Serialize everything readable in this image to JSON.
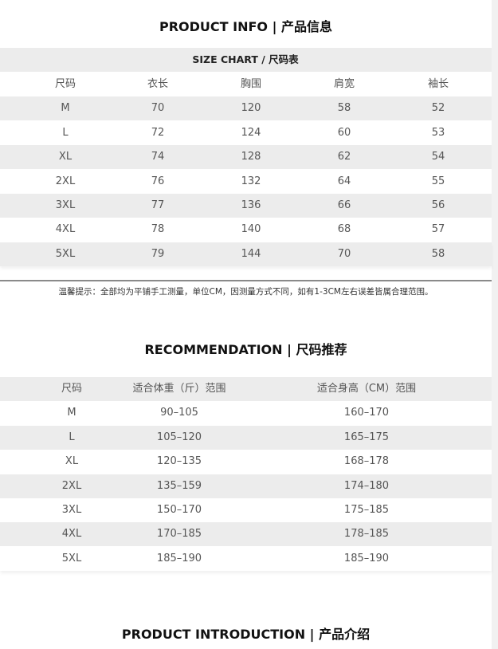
{
  "product_info_title": "PRODUCT INFO |  产品信息",
  "size_chart": {
    "title": "SIZE CHART / 尺码表",
    "headers": [
      "尺码",
      "衣长",
      "胸围",
      "肩宽",
      "袖长"
    ],
    "rows": [
      [
        "M",
        "70",
        "120",
        "58",
        "52"
      ],
      [
        "L",
        "72",
        "124",
        "60",
        "53"
      ],
      [
        "XL",
        "74",
        "128",
        "62",
        "54"
      ],
      [
        "2XL",
        "76",
        "132",
        "64",
        "55"
      ],
      [
        "3XL",
        "77",
        "136",
        "66",
        "56"
      ],
      [
        "4XL",
        "78",
        "140",
        "68",
        "57"
      ],
      [
        "5XL",
        "79",
        "144",
        "70",
        "58"
      ]
    ]
  },
  "note": "温馨提示：全部均为平铺手工测量，单位CM，因测量方式不同，如有1-3CM左右误差皆属合理范围。",
  "recommendation": {
    "title": "RECOMMENDATION  |  尺码推荐",
    "headers": [
      "尺码",
      "适合体重（斤）范围",
      "适合身高（CM）范围"
    ],
    "rows": [
      [
        "M",
        "90–105",
        "160–170"
      ],
      [
        "L",
        "105–120",
        "165–175"
      ],
      [
        "XL",
        "120–135",
        "168–178"
      ],
      [
        "2XL",
        "135–159",
        "174–180"
      ],
      [
        "3XL",
        "150–170",
        "175–185"
      ],
      [
        "4XL",
        "170–185",
        "178–185"
      ],
      [
        "5XL",
        "185–190",
        "185–190"
      ]
    ]
  },
  "product_intro_title": "PRODUCT INTRODUCTION  |  产品介绍"
}
